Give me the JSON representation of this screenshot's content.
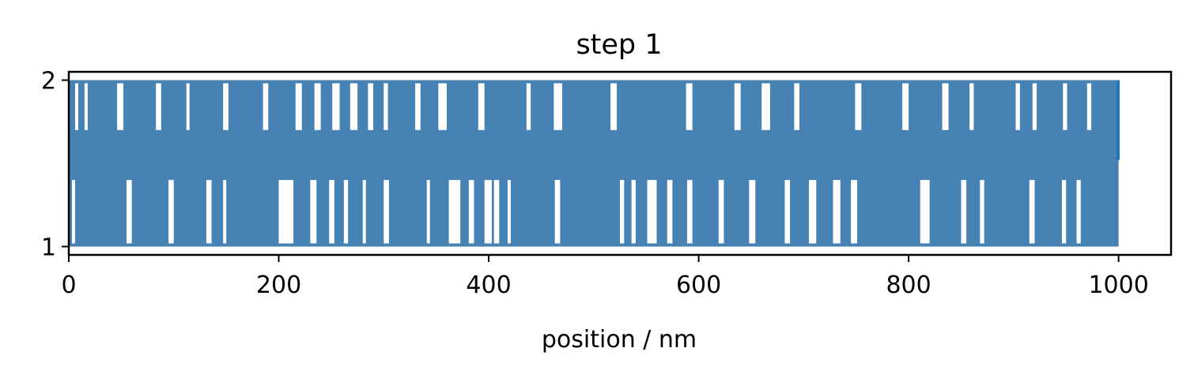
{
  "chart_data": {
    "type": "line",
    "title": "step 1",
    "xlabel": "position / nm",
    "ylabel": "",
    "xlim": [
      0,
      1050
    ],
    "ylim": [
      0.95,
      2.05
    ],
    "xticks": [
      0,
      200,
      400,
      600,
      800,
      1000
    ],
    "xtick_labels": [
      "0",
      "200",
      "400",
      "600",
      "800",
      "1000"
    ],
    "yticks": [
      1,
      2
    ],
    "ytick_labels": [
      "1",
      "2"
    ],
    "grid": false,
    "legend": "none",
    "series": [
      {
        "color": "#4682b4",
        "x": [
          0,
          1000
        ],
        "y": [
          1,
          2
        ],
        "description_values": {
          "low_gaps_x": [
            [
              3,
              6
            ],
            [
              55,
              60
            ],
            [
              95,
              100
            ],
            [
              131,
              136
            ],
            [
              147,
              150
            ],
            [
              200,
              214
            ],
            [
              230,
              236
            ],
            [
              248,
              253
            ],
            [
              262,
              266
            ],
            [
              280,
              283
            ],
            [
              300,
              305
            ],
            [
              341,
              344
            ],
            [
              362,
              373
            ],
            [
              381,
              386
            ],
            [
              396,
              403
            ],
            [
              405,
              410
            ],
            [
              418,
              421
            ],
            [
              463,
              468
            ],
            [
              525,
              529
            ],
            [
              536,
              540
            ],
            [
              551,
              560
            ],
            [
              570,
              575
            ],
            [
              589,
              594
            ],
            [
              619,
              624
            ],
            [
              648,
              654
            ],
            [
              682,
              687
            ],
            [
              705,
              712
            ],
            [
              728,
              735
            ],
            [
              745,
              751
            ],
            [
              811,
              820
            ],
            [
              850,
              855
            ],
            [
              868,
              872
            ],
            [
              915,
              920
            ],
            [
              946,
              950
            ],
            [
              960,
              964
            ]
          ],
          "high_gaps_x": [
            [
              6,
              9
            ],
            [
              15,
              18
            ],
            [
              46,
              52
            ],
            [
              83,
              88
            ],
            [
              112,
              115
            ],
            [
              147,
              152
            ],
            [
              185,
              190
            ],
            [
              216,
              222
            ],
            [
              234,
              240
            ],
            [
              251,
              258
            ],
            [
              268,
              275
            ],
            [
              285,
              290
            ],
            [
              300,
              304
            ],
            [
              330,
              335
            ],
            [
              352,
              360
            ],
            [
              390,
              396
            ],
            [
              436,
              440
            ],
            [
              462,
              470
            ],
            [
              516,
              522
            ],
            [
              588,
              594
            ],
            [
              634,
              640
            ],
            [
              660,
              668
            ],
            [
              691,
              696
            ],
            [
              749,
              755
            ],
            [
              794,
              800
            ],
            [
              832,
              838
            ],
            [
              858,
              862
            ],
            [
              902,
              906
            ],
            [
              918,
              922
            ],
            [
              947,
              951
            ],
            [
              970,
              974
            ]
          ]
        }
      }
    ]
  }
}
